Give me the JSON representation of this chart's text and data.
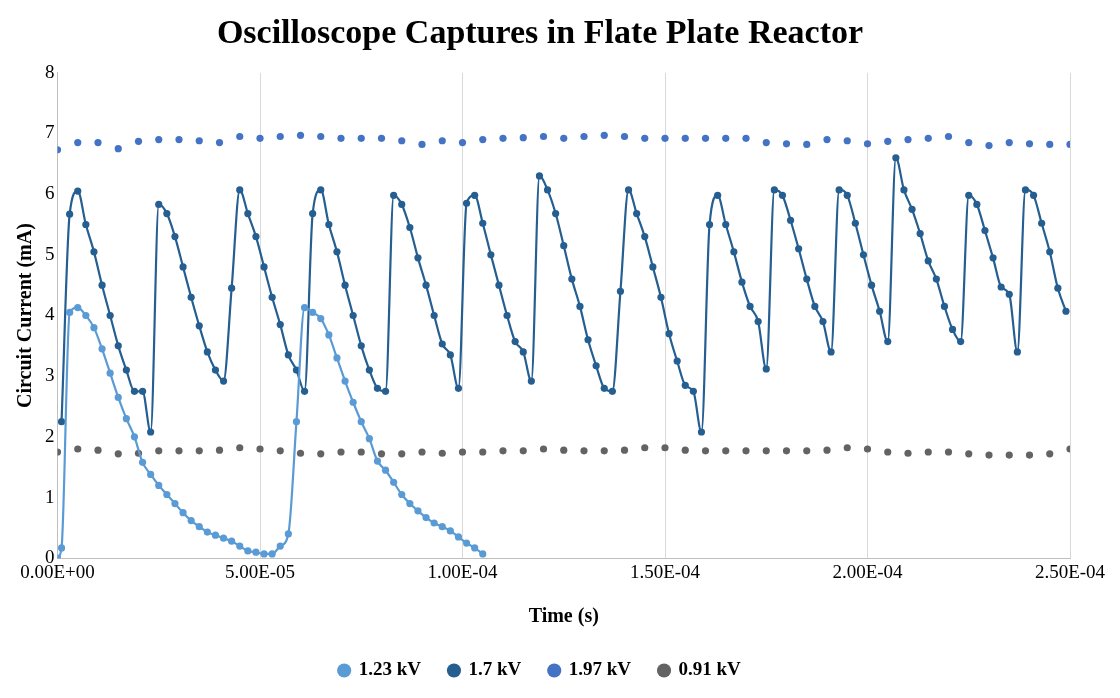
{
  "chart_data": {
    "type": "line",
    "title": "Oscilloscope Captures in Flate Plate Reactor",
    "xlabel": "Time (s)",
    "ylabel": "Circuit Current (mA)",
    "xlim": [
      0,
      0.00025
    ],
    "xticks": [
      {
        "value": 0,
        "label": "0.00E+00"
      },
      {
        "value": 5e-05,
        "label": "5.00E-05"
      },
      {
        "value": 0.0001,
        "label": "1.00E-04"
      },
      {
        "value": 0.00015,
        "label": "1.50E-04"
      },
      {
        "value": 0.0002,
        "label": "2.00E-04"
      },
      {
        "value": 0.00025,
        "label": "2.50E-04"
      }
    ],
    "ylim": [
      0,
      8
    ],
    "yticks": [
      0,
      1,
      2,
      3,
      4,
      5,
      6,
      7,
      8
    ],
    "grid": "x",
    "legend": "bottom",
    "marker": "circle",
    "line_style": "solid",
    "series": [
      {
        "name": "1.23 kV",
        "color": "#5b9bd5",
        "x": [
          0,
          1e-06,
          3e-06,
          5e-06,
          7e-06,
          9e-06,
          1.1e-05,
          1.3e-05,
          1.5e-05,
          1.7e-05,
          1.9e-05,
          2.1e-05,
          2.3e-05,
          2.5e-05,
          2.7e-05,
          2.9e-05,
          3.1e-05,
          3.3e-05,
          3.5e-05,
          3.7e-05,
          3.9e-05,
          4.1e-05,
          4.3e-05,
          4.5e-05,
          4.7e-05,
          4.9e-05,
          5.1e-05,
          5.3e-05,
          5.5e-05,
          5.7e-05,
          5.9e-05,
          6.1e-05,
          6.3e-05,
          6.5e-05,
          6.7e-05,
          6.9e-05,
          7.1e-05,
          7.3e-05,
          7.5e-05,
          7.7e-05,
          7.9e-05,
          8.1e-05,
          8.3e-05,
          8.5e-05,
          8.7e-05,
          8.9e-05,
          9.1e-05,
          9.3e-05,
          9.5e-05,
          9.7e-05,
          9.9e-05,
          0.000101,
          0.000103,
          0.000105
        ],
        "values": [
          0,
          0.17,
          4.05,
          4.13,
          4.0,
          3.8,
          3.45,
          3.05,
          2.65,
          2.3,
          2.0,
          1.58,
          1.38,
          1.2,
          1.05,
          0.9,
          0.75,
          0.62,
          0.52,
          0.43,
          0.38,
          0.33,
          0.28,
          0.2,
          0.12,
          0.1,
          0.07,
          0.07,
          0.2,
          0.4,
          2.25,
          4.13,
          4.05,
          3.95,
          3.68,
          3.3,
          2.92,
          2.57,
          2.25,
          1.97,
          1.6,
          1.45,
          1.25,
          1.05,
          0.9,
          0.78,
          0.67,
          0.58,
          0.52,
          0.45,
          0.35,
          0.25,
          0.17,
          0.07
        ]
      },
      {
        "name": "1.7 kV",
        "color": "#255e91",
        "x": [
          1e-06,
          3e-06,
          5e-06,
          7e-06,
          9e-06,
          1.1e-05,
          1.3e-05,
          1.5e-05,
          1.7e-05,
          1.9e-05,
          2.1e-05,
          2.3e-05,
          2.5e-05,
          2.7e-05,
          2.9e-05,
          3.1e-05,
          3.3e-05,
          3.5e-05,
          3.7e-05,
          3.9e-05,
          4.1e-05,
          4.3e-05,
          4.5e-05,
          4.7e-05,
          4.9e-05,
          5.1e-05,
          5.3e-05,
          5.5e-05,
          5.7e-05,
          5.9e-05,
          6.1e-05,
          6.3e-05,
          6.5e-05,
          6.7e-05,
          6.9e-05,
          7.1e-05,
          7.3e-05,
          7.5e-05,
          7.7e-05,
          7.9e-05,
          8.1e-05,
          8.3e-05,
          8.5e-05,
          8.7e-05,
          8.9e-05,
          9.1e-05,
          9.3e-05,
          9.5e-05,
          9.7e-05,
          9.9e-05,
          0.000101,
          0.000103,
          0.000105,
          0.000107,
          0.000109,
          0.000111,
          0.000113,
          0.000115,
          0.000117,
          0.000119,
          0.000121,
          0.000123,
          0.000125,
          0.000127,
          0.000129,
          0.000131,
          0.000133,
          0.000135,
          0.000137,
          0.000139,
          0.000141,
          0.000143,
          0.000145,
          0.000147,
          0.000149,
          0.000151,
          0.000153,
          0.000155,
          0.000157,
          0.000159,
          0.000161,
          0.000163,
          0.000165,
          0.000167,
          0.000169,
          0.000171,
          0.000173,
          0.000175,
          0.000177,
          0.000179,
          0.000181,
          0.000183,
          0.000185,
          0.000187,
          0.000189,
          0.000191,
          0.000193,
          0.000195,
          0.000197,
          0.000199,
          0.000201,
          0.000203,
          0.000205,
          0.000207,
          0.000209,
          0.000211,
          0.000213,
          0.000215,
          0.000217,
          0.000219,
          0.000221,
          0.000223,
          0.000225,
          0.000227,
          0.000229,
          0.000231,
          0.000233,
          0.000235,
          0.000237,
          0.000239,
          0.000241,
          0.000243,
          0.000245,
          0.000247,
          0.000249
        ],
        "values": [
          2.25,
          5.67,
          6.05,
          5.5,
          5.05,
          4.5,
          4.0,
          3.5,
          3.1,
          2.75,
          2.75,
          2.08,
          5.83,
          5.68,
          5.3,
          4.8,
          4.3,
          3.83,
          3.4,
          3.1,
          2.92,
          4.45,
          6.07,
          5.68,
          5.3,
          4.8,
          4.3,
          3.85,
          3.35,
          3.1,
          2.75,
          5.68,
          6.07,
          5.5,
          5.05,
          4.5,
          4.0,
          3.5,
          3.1,
          2.8,
          2.75,
          5.98,
          5.83,
          5.45,
          4.95,
          4.5,
          4.0,
          3.53,
          3.35,
          2.8,
          5.85,
          5.98,
          5.52,
          5.0,
          4.5,
          4.0,
          3.57,
          3.4,
          2.92,
          6.3,
          6.07,
          5.68,
          5.15,
          4.6,
          4.15,
          3.6,
          3.17,
          2.8,
          2.75,
          4.4,
          6.07,
          5.68,
          5.3,
          4.8,
          4.3,
          3.7,
          3.25,
          2.85,
          2.75,
          2.08,
          5.5,
          5.98,
          5.5,
          5.05,
          4.55,
          4.15,
          3.9,
          3.12,
          6.07,
          5.98,
          5.57,
          5.1,
          4.6,
          4.15,
          3.9,
          3.4,
          6.07,
          5.98,
          5.52,
          5.0,
          4.5,
          4.07,
          3.57,
          6.6,
          6.07,
          5.75,
          5.35,
          4.9,
          4.6,
          4.15,
          3.77,
          3.57,
          5.98,
          5.83,
          5.4,
          4.95,
          4.47,
          4.35,
          3.4,
          6.07,
          5.98,
          5.52,
          5.05,
          4.45,
          4.07
        ]
      },
      {
        "name": "1.97 kV",
        "type": "scatter",
        "color": "#4472c4",
        "x": [
          0,
          5e-06,
          1e-05,
          1.5e-05,
          2e-05,
          2.5e-05,
          3e-05,
          3.5e-05,
          4e-05,
          4.5e-05,
          5e-05,
          5.5e-05,
          6e-05,
          6.5e-05,
          7e-05,
          7.5e-05,
          8e-05,
          8.5e-05,
          9e-05,
          9.5e-05,
          0.0001,
          0.000105,
          0.00011,
          0.000115,
          0.00012,
          0.000125,
          0.00013,
          0.000135,
          0.00014,
          0.000145,
          0.00015,
          0.000155,
          0.00016,
          0.000165,
          0.00017,
          0.000175,
          0.00018,
          0.000185,
          0.00019,
          0.000195,
          0.0002,
          0.000205,
          0.00021,
          0.000215,
          0.00022,
          0.000225,
          0.00023,
          0.000235,
          0.00024,
          0.000245,
          0.00025
        ],
        "values": [
          6.73,
          6.85,
          6.85,
          6.75,
          6.87,
          6.9,
          6.9,
          6.88,
          6.85,
          6.95,
          6.92,
          6.95,
          6.97,
          6.95,
          6.92,
          6.92,
          6.92,
          6.88,
          6.82,
          6.88,
          6.85,
          6.9,
          6.92,
          6.93,
          6.95,
          6.92,
          6.95,
          6.97,
          6.95,
          6.92,
          6.92,
          6.92,
          6.92,
          6.92,
          6.92,
          6.85,
          6.83,
          6.82,
          6.9,
          6.88,
          6.83,
          6.87,
          6.9,
          6.92,
          6.95,
          6.85,
          6.8,
          6.85,
          6.83,
          6.82,
          6.82
        ]
      },
      {
        "name": "0.91 kV",
        "type": "scatter",
        "color": "#636363",
        "x": [
          0,
          5e-06,
          1e-05,
          1.5e-05,
          2e-05,
          2.5e-05,
          3e-05,
          3.5e-05,
          4e-05,
          4.5e-05,
          5e-05,
          5.5e-05,
          6e-05,
          6.5e-05,
          7e-05,
          7.5e-05,
          8e-05,
          8.5e-05,
          9e-05,
          9.5e-05,
          0.0001,
          0.000105,
          0.00011,
          0.000115,
          0.00012,
          0.000125,
          0.00013,
          0.000135,
          0.00014,
          0.000145,
          0.00015,
          0.000155,
          0.00016,
          0.000165,
          0.00017,
          0.000175,
          0.00018,
          0.000185,
          0.00019,
          0.000195,
          0.0002,
          0.000205,
          0.00021,
          0.000215,
          0.00022,
          0.000225,
          0.00023,
          0.000235,
          0.00024,
          0.000245,
          0.00025
        ],
        "values": [
          1.75,
          1.8,
          1.78,
          1.72,
          1.73,
          1.77,
          1.77,
          1.77,
          1.78,
          1.82,
          1.8,
          1.77,
          1.73,
          1.72,
          1.75,
          1.75,
          1.72,
          1.72,
          1.75,
          1.73,
          1.75,
          1.75,
          1.77,
          1.77,
          1.8,
          1.78,
          1.77,
          1.77,
          1.78,
          1.82,
          1.82,
          1.78,
          1.77,
          1.77,
          1.77,
          1.77,
          1.77,
          1.77,
          1.78,
          1.82,
          1.8,
          1.75,
          1.73,
          1.75,
          1.75,
          1.72,
          1.7,
          1.7,
          1.7,
          1.72,
          1.8
        ]
      }
    ]
  }
}
